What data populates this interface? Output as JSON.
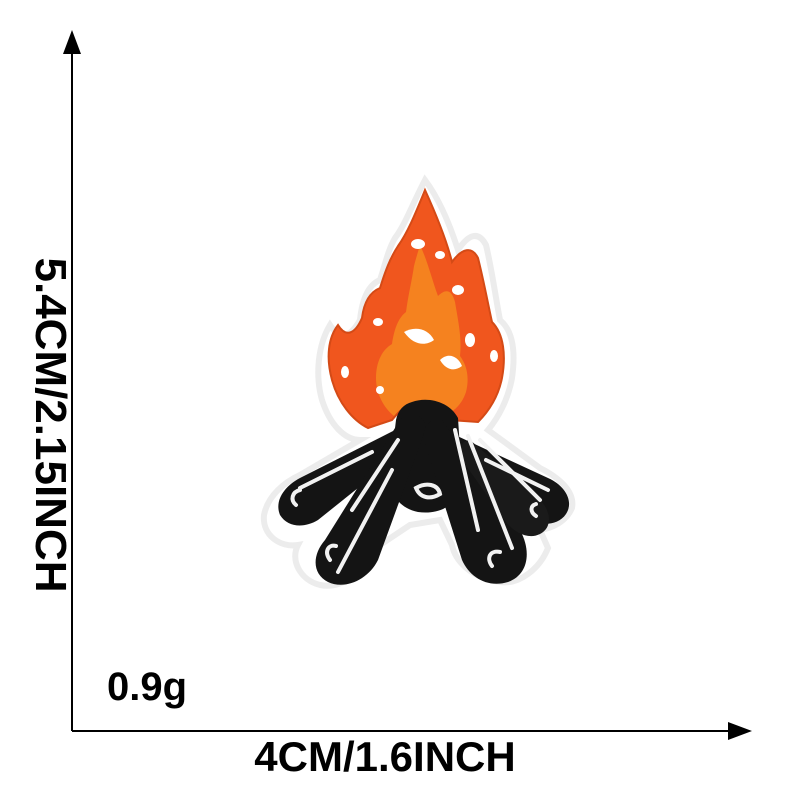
{
  "dimensions": {
    "height_label": "5.4CM/2.15INCH",
    "width_label": "4CM/1.6INCH",
    "weight_label": "0.9g"
  },
  "product": {
    "icon": "campfire-patch-icon",
    "colors": {
      "flame_outer": "#f0561e",
      "flame_inner": "#f5821f",
      "logs": "#141414",
      "stitching": "#f2f2f2"
    }
  }
}
